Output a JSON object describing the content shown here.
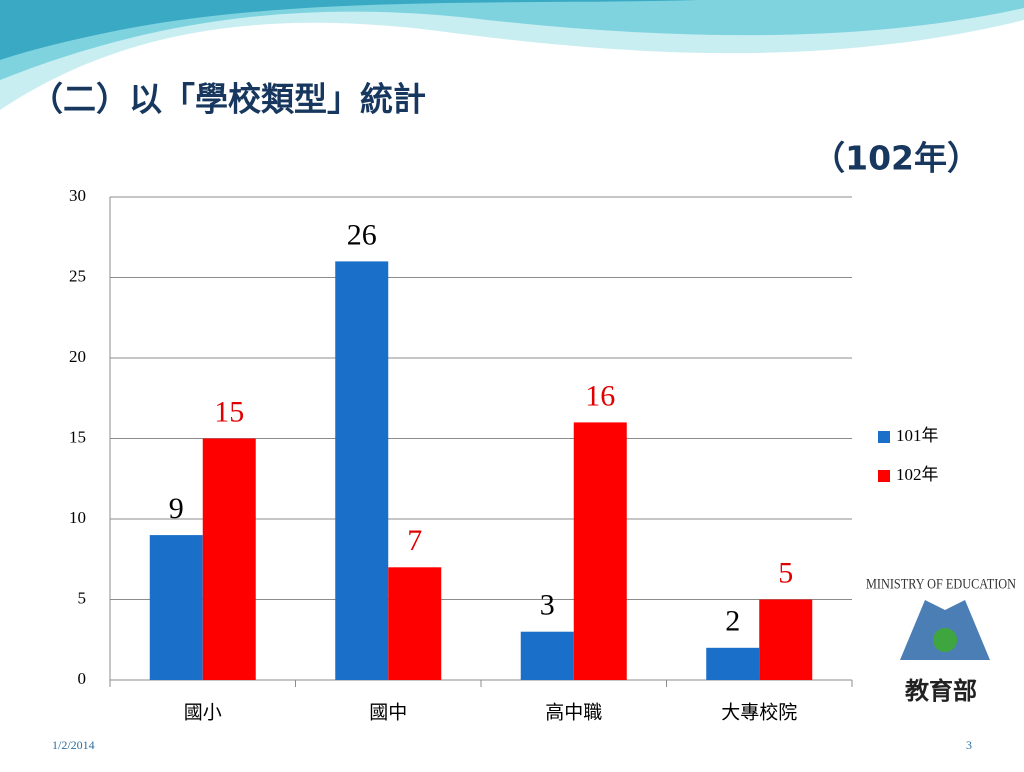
{
  "chart_data": {
    "type": "bar",
    "title": "（二）以「學校類型」統計",
    "subtitle": "（102年）",
    "categories": [
      "國小",
      "國中",
      "高中職",
      "大專校院"
    ],
    "series": [
      {
        "name": "101年",
        "color": "#1a6fc9",
        "label_color": "#000000",
        "values": [
          9,
          26,
          3,
          2
        ]
      },
      {
        "name": "102年",
        "color": "#ff0000",
        "label_color": "#e00000",
        "values": [
          15,
          7,
          16,
          5
        ]
      }
    ],
    "ylim": [
      0,
      30
    ],
    "yticks": [
      0,
      5,
      10,
      15,
      20,
      25,
      30
    ],
    "grid": true,
    "legend": "right"
  },
  "footer": {
    "date": "1/2/2014",
    "page": "3"
  },
  "logo": {
    "text": "MINISTRY OF EDUCATION",
    "name": "教育部"
  }
}
